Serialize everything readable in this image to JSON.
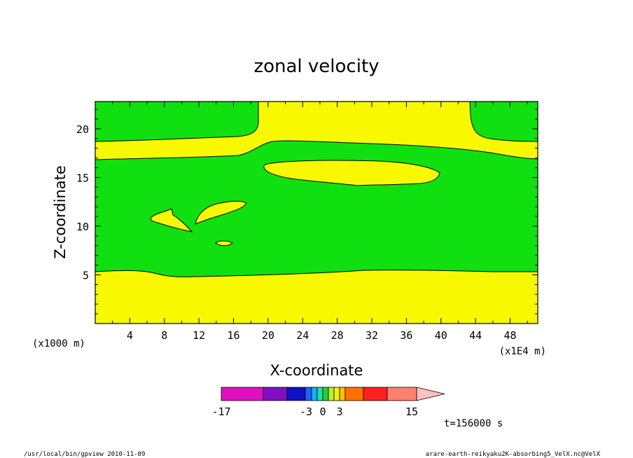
{
  "chart_data": {
    "type": "contour",
    "title": "zonal velocity",
    "xlabel": "X-coordinate",
    "ylabel": "Z-coordinate",
    "x_unit_note": "(x1000 m)",
    "x_scale_note": "(x1E4 m)",
    "xlim": [
      0,
      51.2
    ],
    "ylim": [
      0,
      22.8
    ],
    "x_ticks": [
      "4",
      "8",
      "12",
      "16",
      "20",
      "24",
      "28",
      "32",
      "36",
      "40",
      "44",
      "48"
    ],
    "y_ticks": [
      "5",
      "10",
      "15",
      "20"
    ],
    "colorbar": {
      "labels": [
        "-17",
        "-3",
        "0",
        "3",
        "15"
      ],
      "extend": "max",
      "colors": [
        "#e010c0",
        "#8010c0",
        "#1010c0",
        "#2060ff",
        "#10b0ff",
        "#20e0a0",
        "#20d040",
        "#c0f020",
        "#f0f010",
        "#ffc000",
        "#ff7000",
        "#ff2020",
        "#ff8070"
      ],
      "extension_color": "#ffc0c0"
    },
    "field_colors": {
      "positive_band": "#f8f800",
      "background": "#10e010"
    },
    "regions": [
      {
        "name": "lower-yellow-band",
        "description": "yellow band from z=0 to about z=5.5"
      },
      {
        "name": "upper-yellow-band",
        "description": "yellow band near z=17-19 rising to top near x=20 and x=44"
      },
      {
        "name": "elongated-yellow-blob",
        "description": "yellow ellipse near z=15-16.5 spanning x=19 to x=40"
      },
      {
        "name": "small-yellow-blobs",
        "description": "small yellow patches near x=7-17, z=8-12"
      }
    ]
  },
  "annotations": {
    "time_label": "t=156000 s",
    "footer_left": "/usr/local/bin/gpview  2010-11-09",
    "footer_right": "arare-earth-reikyaku2K-absorbing5_VelX.nc@VelX"
  }
}
